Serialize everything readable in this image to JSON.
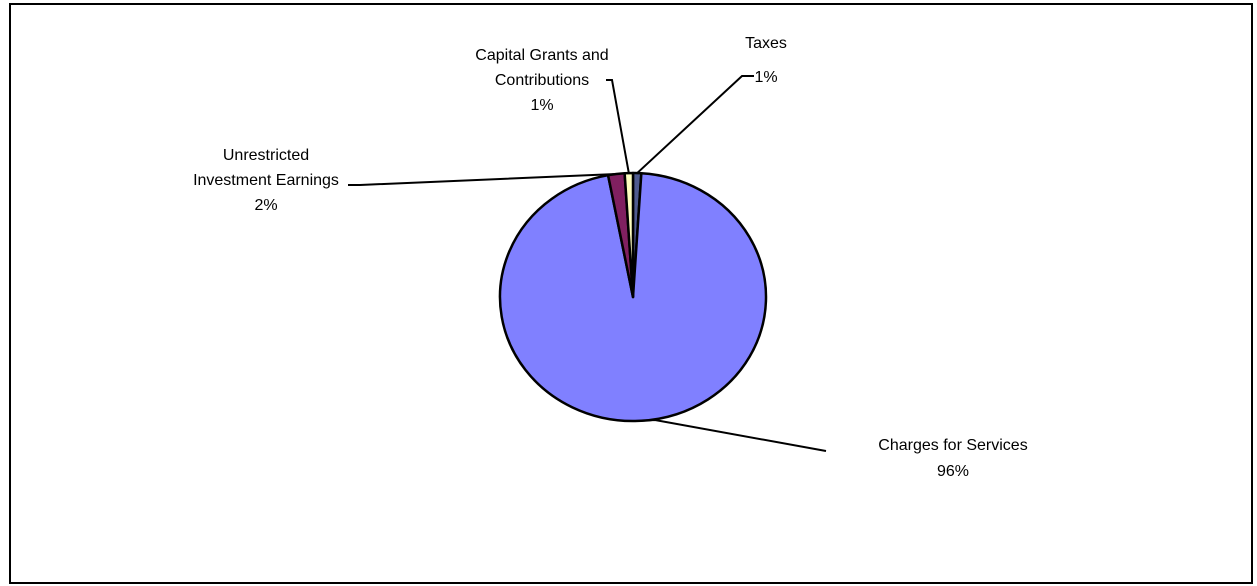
{
  "chart_data": {
    "type": "pie",
    "title": "",
    "slices": [
      {
        "label_lines": [
          "Taxes"
        ],
        "percent_label": "1%",
        "value": 1,
        "color": "#4f5b8f"
      },
      {
        "label_lines": [
          "Charges for Services"
        ],
        "percent_label": "96%",
        "value": 96,
        "color": "#8080ff"
      },
      {
        "label_lines": [
          "Unrestricted",
          "Investment Earnings"
        ],
        "percent_label": "2%",
        "value": 2,
        "color": "#802060"
      },
      {
        "label_lines": [
          "Capital Grants and",
          "Contributions"
        ],
        "percent_label": "1%",
        "value": 1,
        "color": "#ffffc0"
      }
    ],
    "legend": "none"
  }
}
